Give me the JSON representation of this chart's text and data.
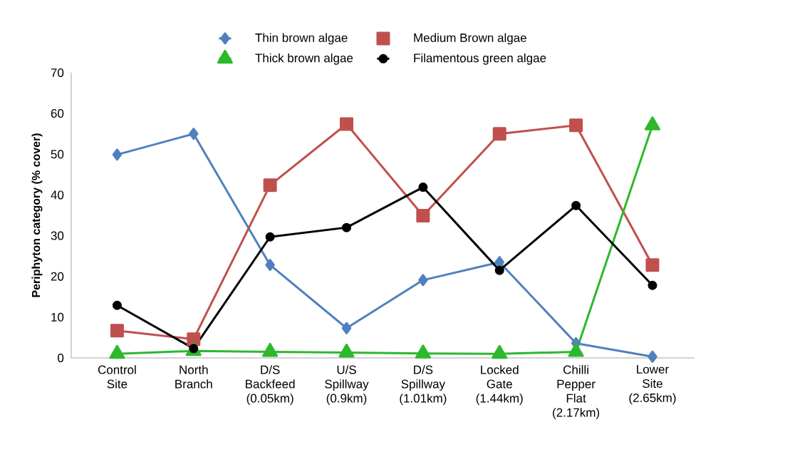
{
  "chart_data": {
    "type": "line",
    "ylabel": "Periphyton category (% cover)",
    "categories": [
      "Control Site",
      "North Branch",
      "D/S Backfeed (0.05km)",
      "U/S Spillway (0.9km)",
      "D/S Spillway (1.01km)",
      "Locked Gate (1.44km)",
      "Chilli Pepper Flat (2.17km)",
      "Lower Site (2.65km)"
    ],
    "series": [
      {
        "name": "Thin brown algae",
        "color": "#4f81bd",
        "marker": "diamond",
        "values": [
          49.9,
          55,
          22.8,
          7.3,
          19.1,
          23.5,
          3.6,
          0.3
        ]
      },
      {
        "name": "Medium Brown algae",
        "color": "#c0504d",
        "marker": "square",
        "values": [
          6.7,
          4.6,
          42.4,
          57.4,
          34.9,
          55,
          57.1,
          22.8
        ]
      },
      {
        "name": "Thick brown algae",
        "color": "#2db82d",
        "marker": "triangle",
        "values": [
          1,
          1.7,
          1.5,
          1.3,
          1.1,
          1,
          1.5,
          57.1
        ]
      },
      {
        "name": "Filamentous green algae",
        "color": "#000000",
        "marker": "circle",
        "values": [
          12.9,
          2.3,
          29.7,
          32,
          41.9,
          21.5,
          37.4,
          17.8
        ]
      }
    ],
    "ylim": [
      0,
      70
    ],
    "yticks": [
      0,
      10,
      20,
      30,
      40,
      50,
      60,
      70
    ],
    "grid": false,
    "legend": "top",
    "line_style": "solid"
  }
}
